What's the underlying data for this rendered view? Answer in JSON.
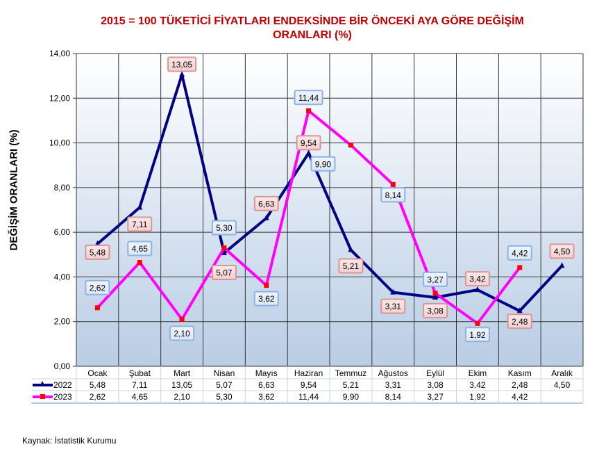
{
  "chart_data": {
    "type": "line",
    "title_line1": "2015 = 100 TÜKETİCİ FİYATLARI ENDEKSİNDE BİR ÖNCEKİ AYA GÖRE DEĞİŞİM",
    "title_line2": "ORANLARI (%)",
    "ylabel": "DEĞİŞİM ORANLARI (%)",
    "xlabel": "",
    "ylim": [
      0,
      14
    ],
    "yticks": [
      "0,00",
      "2,00",
      "4,00",
      "6,00",
      "8,00",
      "10,00",
      "12,00",
      "14,00"
    ],
    "grid": true,
    "legend_placement": "data-table-left",
    "categories": [
      "Ocak",
      "Şubat",
      "Mart",
      "Nisan",
      "Mayıs",
      "Haziran",
      "Temmuz",
      "Ağustos",
      "Eylül",
      "Ekim",
      "Kasım",
      "Aralık"
    ],
    "series": [
      {
        "name": "2022",
        "color": "#000080",
        "values": [
          5.48,
          7.11,
          13.05,
          5.07,
          6.63,
          9.54,
          5.21,
          3.31,
          3.08,
          3.42,
          2.48,
          4.5
        ],
        "labels": [
          "5,48",
          "7,11",
          "13,05",
          "5,07",
          "6,63",
          "9,54",
          "5,21",
          "3,31",
          "3,08",
          "3,42",
          "2,48",
          "4,50"
        ]
      },
      {
        "name": "2023",
        "color": "#ff00ff",
        "values": [
          2.62,
          4.65,
          2.1,
          5.3,
          3.62,
          11.44,
          9.9,
          8.14,
          3.27,
          1.92,
          4.42,
          null
        ],
        "labels": [
          "2,62",
          "4,65",
          "2,10",
          "5,30",
          "3,62",
          "11,44",
          "9,90",
          "8,14",
          "3,27",
          "1,92",
          "4,42",
          ""
        ]
      }
    ]
  },
  "source": "Kaynak: İstatistik Kurumu"
}
